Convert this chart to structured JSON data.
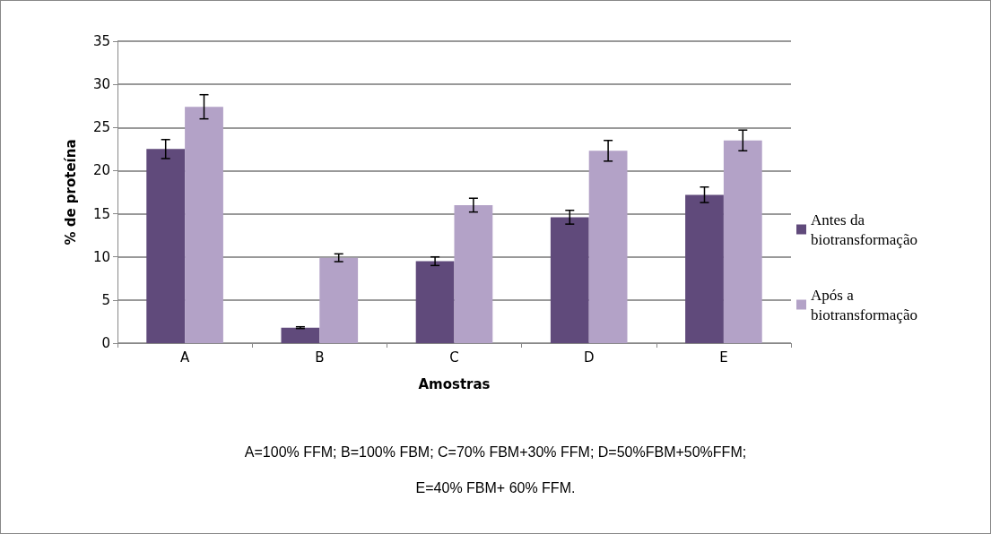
{
  "chart_data": {
    "type": "bar",
    "xlabel": "Amostras",
    "ylabel": "% de proteína",
    "categories": [
      "A",
      "B",
      "C",
      "D",
      "E"
    ],
    "series": [
      {
        "name": "Antes da biotransformação",
        "color": "#604a7b",
        "values": [
          22.5,
          1.8,
          9.5,
          14.6,
          17.2
        ],
        "errors": [
          1.1,
          0.1,
          0.5,
          0.8,
          0.9
        ]
      },
      {
        "name": "Após a biotransformação",
        "color": "#b3a2c7",
        "values": [
          27.4,
          9.9,
          16.0,
          22.3,
          23.5
        ],
        "errors": [
          1.4,
          0.45,
          0.8,
          1.2,
          1.2
        ]
      }
    ],
    "ylim": [
      0,
      35
    ],
    "yticks": [
      0,
      5,
      10,
      15,
      20,
      25,
      30,
      35
    ],
    "grid": "y",
    "legend": "right",
    "annotations": [
      "A=100% FFM; B=100% FBM; C=70% FBM+30% FFM; D=50%FBM+50%FFM;",
      "E=40% FBM+ 60% FFM."
    ]
  }
}
